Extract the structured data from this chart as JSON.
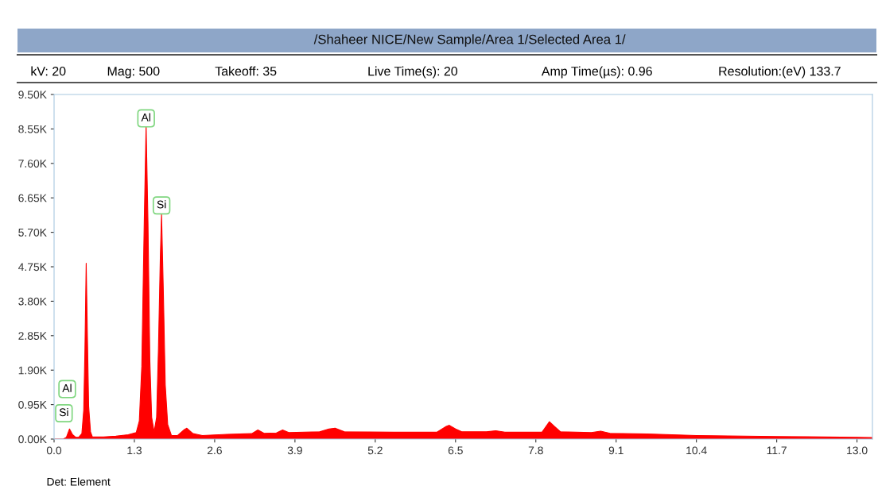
{
  "chart_data": {
    "type": "area",
    "title": "/Shaheer NICE/New Sample/Area 1/Selected Area 1/",
    "annotations": [
      "kV: 20",
      "Mag: 500",
      "Takeoff: 35",
      "Live Time(s): 20",
      "Amp Time(µs): 0.96",
      "Resolution:(eV) 133.7",
      {
        "text": "Al",
        "x": 1.49,
        "y": 8700
      },
      {
        "text": "Si",
        "x": 1.74,
        "y": 6300
      },
      "Al",
      "Si",
      "Det: Element"
    ],
    "x": [
      0.0,
      0.15,
      0.2,
      0.25,
      0.3,
      0.35,
      0.4,
      0.45,
      0.48,
      0.5,
      0.52,
      0.54,
      0.56,
      0.59,
      0.62,
      0.8,
      1.0,
      1.2,
      1.33,
      1.38,
      1.42,
      1.46,
      1.49,
      1.52,
      1.55,
      1.58,
      1.62,
      1.66,
      1.69,
      1.72,
      1.74,
      1.77,
      1.8,
      1.84,
      1.9,
      2.0,
      2.1,
      2.15,
      2.25,
      2.4,
      2.8,
      3.2,
      3.3,
      3.4,
      3.6,
      3.7,
      3.8,
      4.3,
      4.45,
      4.55,
      4.7,
      5.5,
      6.2,
      6.35,
      6.4,
      6.5,
      6.6,
      7.0,
      7.15,
      7.3,
      7.9,
      8.02,
      8.1,
      8.2,
      8.7,
      8.85,
      9.0,
      9.6,
      10.4,
      11.7,
      13.0,
      13.25
    ],
    "series": [
      {
        "color": "#ff0000",
        "values": [
          0,
          0,
          50,
          280,
          120,
          50,
          50,
          150,
          800,
          2500,
          4850,
          2800,
          900,
          200,
          60,
          60,
          80,
          120,
          180,
          500,
          2000,
          6000,
          8650,
          6000,
          2200,
          600,
          200,
          600,
          2500,
          5000,
          6200,
          4000,
          1500,
          400,
          100,
          100,
          250,
          300,
          150,
          100,
          130,
          150,
          250,
          160,
          170,
          250,
          180,
          200,
          280,
          300,
          200,
          190,
          190,
          350,
          380,
          280,
          200,
          200,
          230,
          190,
          190,
          480,
          350,
          200,
          180,
          220,
          160,
          140,
          100,
          70,
          50,
          40
        ]
      }
    ],
    "xlim": [
      0,
      13.25
    ],
    "ylim": [
      0,
      9500
    ],
    "xticks": [
      {
        "value": 0,
        "label": "0.0"
      },
      1.3,
      2.6,
      3.9,
      5.2,
      6.5,
      7.8,
      9.1,
      10.4,
      11.7,
      {
        "value": 13,
        "label": "13.0"
      }
    ],
    "yticks": [
      {
        "value": 0,
        "label": "0.00K"
      },
      {
        "value": 950,
        "label": "0.95K"
      },
      {
        "value": 1900,
        "label": "1.90K"
      },
      {
        "value": 2850,
        "label": "2.85K"
      },
      {
        "value": 3800,
        "label": "3.80K"
      },
      {
        "value": 4750,
        "label": "4.75K"
      },
      {
        "value": 5700,
        "label": "5.70K"
      },
      {
        "value": 6650,
        "label": "6.65K"
      },
      {
        "value": 7600,
        "label": "7.60K"
      },
      {
        "value": 8550,
        "label": "8.55K"
      },
      {
        "value": 9500,
        "label": "9.50K"
      }
    ],
    "grid": false,
    "legend": false
  }
}
